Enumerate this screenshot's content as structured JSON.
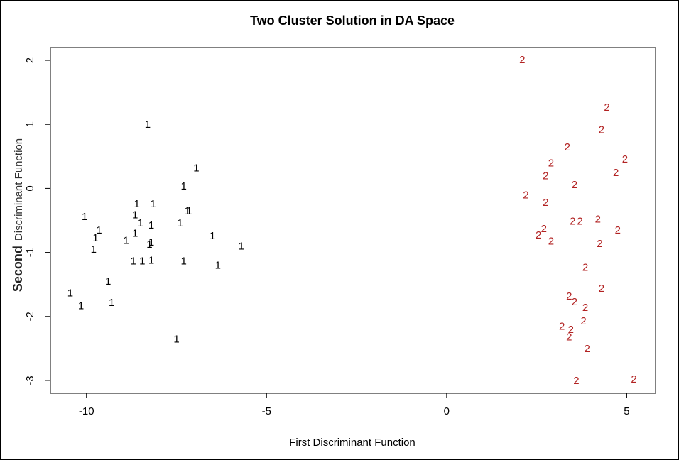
{
  "chart_data": {
    "type": "scatter",
    "title": "Two Cluster Solution in DA Space",
    "xlabel": "First Discriminant Function",
    "ylabel_bold": "Second",
    "ylabel_rest": "Discriminant Function",
    "xlim": [
      -11,
      5.8
    ],
    "ylim": [
      -3.2,
      2.2
    ],
    "xticks": [
      -10,
      -5,
      0,
      5
    ],
    "yticks": [
      -3,
      -2,
      -1,
      0,
      1,
      2
    ],
    "xtick_labels": [
      "-10",
      "-5",
      "0",
      "5"
    ],
    "ytick_labels": [
      "-3",
      "-2",
      "-1",
      "0",
      "1",
      "2"
    ],
    "grid": false,
    "series": [
      {
        "marker": "1",
        "color": "#000000",
        "points": [
          [
            -8.3,
            1.0
          ],
          [
            -6.95,
            0.32
          ],
          [
            -7.3,
            0.04
          ],
          [
            -8.6,
            -0.24
          ],
          [
            -8.15,
            -0.24
          ],
          [
            -8.65,
            -0.41
          ],
          [
            -7.2,
            -0.35
          ],
          [
            -7.15,
            -0.35
          ],
          [
            -10.05,
            -0.44
          ],
          [
            -8.5,
            -0.54
          ],
          [
            -8.2,
            -0.57
          ],
          [
            -7.4,
            -0.54
          ],
          [
            -9.65,
            -0.65
          ],
          [
            -9.75,
            -0.77
          ],
          [
            -8.65,
            -0.7
          ],
          [
            -8.9,
            -0.81
          ],
          [
            -6.5,
            -0.74
          ],
          [
            -8.2,
            -0.84
          ],
          [
            -8.25,
            -0.87
          ],
          [
            -9.8,
            -0.95
          ],
          [
            -5.7,
            -0.9
          ],
          [
            -8.7,
            -1.13
          ],
          [
            -8.45,
            -1.13
          ],
          [
            -8.2,
            -1.12
          ],
          [
            -7.3,
            -1.13
          ],
          [
            -6.35,
            -1.2
          ],
          [
            -9.4,
            -1.45
          ],
          [
            -10.45,
            -1.63
          ],
          [
            -10.15,
            -1.83
          ],
          [
            -9.3,
            -1.78
          ],
          [
            -7.5,
            -2.35
          ]
        ]
      },
      {
        "marker": "2",
        "color": "#b22222",
        "points": [
          [
            2.1,
            2.01
          ],
          [
            4.45,
            1.27
          ],
          [
            4.3,
            0.92
          ],
          [
            3.35,
            0.65
          ],
          [
            4.95,
            0.46
          ],
          [
            2.9,
            0.4
          ],
          [
            4.7,
            0.25
          ],
          [
            2.75,
            0.2
          ],
          [
            3.55,
            0.06
          ],
          [
            2.2,
            -0.1
          ],
          [
            2.75,
            -0.22
          ],
          [
            3.5,
            -0.51
          ],
          [
            3.7,
            -0.51
          ],
          [
            4.2,
            -0.48
          ],
          [
            2.7,
            -0.63
          ],
          [
            4.75,
            -0.65
          ],
          [
            2.55,
            -0.73
          ],
          [
            2.9,
            -0.82
          ],
          [
            4.25,
            -0.86
          ],
          [
            3.85,
            -1.23
          ],
          [
            4.3,
            -1.56
          ],
          [
            3.4,
            -1.68
          ],
          [
            3.55,
            -1.77
          ],
          [
            3.85,
            -1.86
          ],
          [
            3.2,
            -2.15
          ],
          [
            3.8,
            -2.07
          ],
          [
            3.45,
            -2.2
          ],
          [
            3.4,
            -2.32
          ],
          [
            3.9,
            -2.5
          ],
          [
            5.2,
            -2.98
          ],
          [
            3.6,
            -3.0
          ]
        ]
      }
    ]
  }
}
